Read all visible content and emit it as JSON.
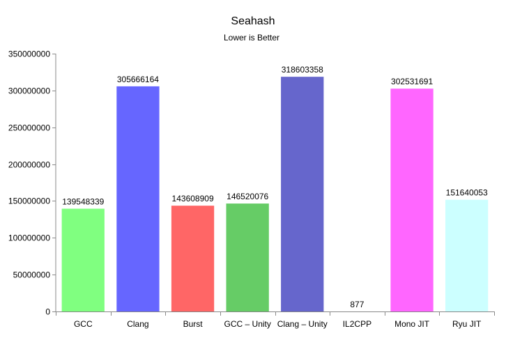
{
  "chart_data": {
    "type": "bar",
    "title": "Seahash",
    "subtitle": "Lower is Better",
    "xlabel": "",
    "ylabel": "",
    "ylim": [
      0,
      350000000
    ],
    "yticks": [
      0,
      50000000,
      100000000,
      150000000,
      200000000,
      250000000,
      300000000,
      350000000
    ],
    "grid": false,
    "legend": "none",
    "categories": [
      "GCC",
      "Clang",
      "Burst",
      "GCC – Unity",
      "Clang – Unity",
      "IL2CPP",
      "Mono JIT",
      "Ryu JIT"
    ],
    "values": [
      139548339,
      305666164,
      143608909,
      146520076,
      318603358,
      877,
      302531691,
      151640053
    ],
    "colors": [
      "#80ff80",
      "#6666ff",
      "#ff6666",
      "#66cc66",
      "#6666cc",
      "#ffffff",
      "#ff66ff",
      "#ccffff"
    ]
  }
}
